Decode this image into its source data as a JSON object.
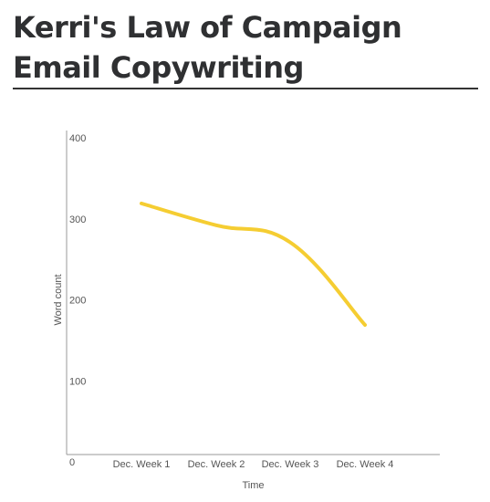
{
  "header": {
    "title": "Kerri's Law of Campaign Email Copywriting"
  },
  "chart_data": {
    "type": "line",
    "title": "Kerri's Law of Campaign Email Copywriting",
    "xlabel": "Time",
    "ylabel": "Word count",
    "categories": [
      "Dec. Week 1",
      "Dec. Week 2",
      "Dec. Week 3",
      "Dec. Week 4"
    ],
    "series": [
      {
        "values": [
          310,
          283,
          262,
          160
        ],
        "color": "#f5cd32"
      }
    ],
    "ylim": [
      0,
      400
    ],
    "yticks": [
      0,
      100,
      200,
      300,
      400
    ],
    "grid": false,
    "legend": "none"
  }
}
